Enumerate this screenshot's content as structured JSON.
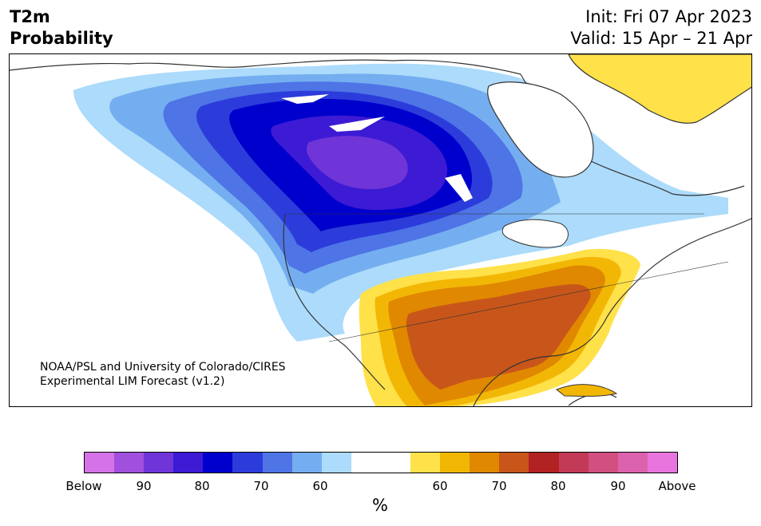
{
  "header": {
    "variable": "T2m",
    "product": "Probability",
    "init": "Init: Fri 07 Apr 2023",
    "valid": "Valid: 15 Apr – 21 Apr"
  },
  "credit": {
    "line1": "NOAA/PSL and University of Colorado/CIRES",
    "line2": "Experimental LIM Forecast (v1.2)"
  },
  "colorbar": {
    "unit": "%",
    "colors": [
      "#d672e8",
      "#a150dd",
      "#6f35d8",
      "#3d1ad4",
      "#0000cd",
      "#2c3cda",
      "#4e74e6",
      "#74aef0",
      "#acdbfb",
      "#ffffff",
      "#ffffff",
      "#ffe14a",
      "#f2b705",
      "#e08800",
      "#c8561a",
      "#b22222",
      "#c23a56",
      "#d1507f",
      "#dd62ad",
      "#e875dd"
    ],
    "ticks": [
      "Below",
      "90",
      "80",
      "70",
      "60",
      "60",
      "70",
      "80",
      "90",
      "Above"
    ]
  },
  "colors": {
    "below_90": "#6f35d8",
    "below_80": "#3d1ad4",
    "below_70": "#0000cd",
    "below_60": "#4e74e6",
    "below_50": "#74aef0",
    "below_40": "#acdbfb",
    "above_40": "#ffe14a",
    "above_50": "#f2b705",
    "above_60": "#e08800",
    "above_70": "#c8561a",
    "coast": "#333333"
  }
}
